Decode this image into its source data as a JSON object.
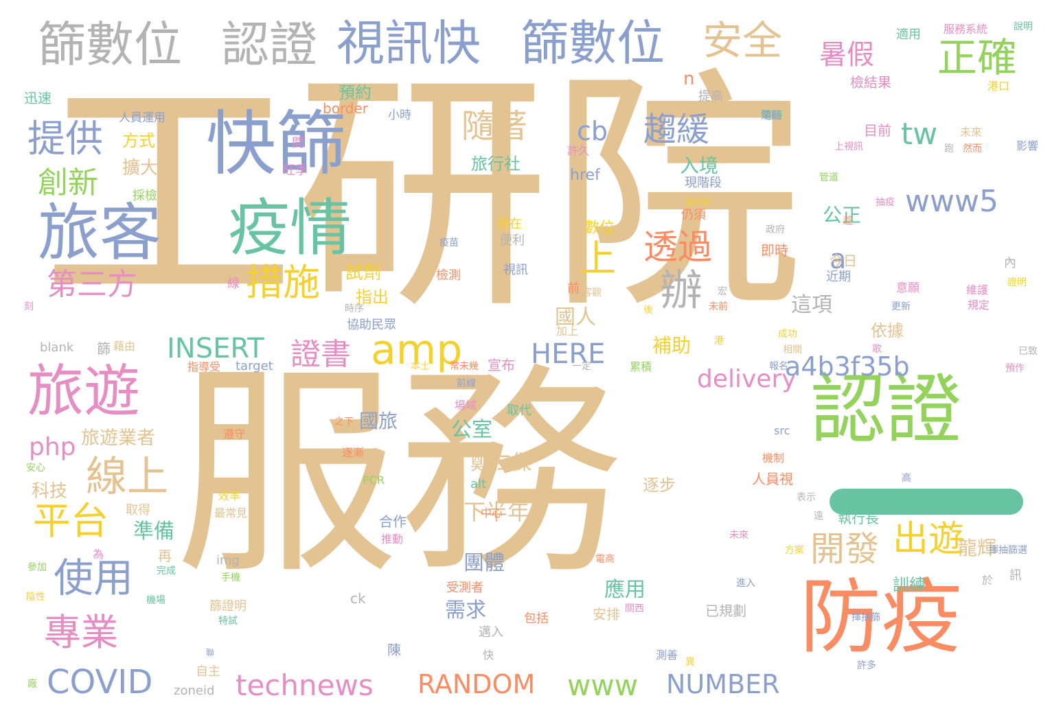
{
  "palette": {
    "tan": "#e3c391",
    "green": "#93d35c",
    "blue": "#8b9fcd",
    "pink": "#e58ec3",
    "orange": "#f98c62",
    "teal": "#67c3a1",
    "gray": "#b3b3b3",
    "yellow": "#f5d12f"
  },
  "words": {
    "w01": "工研院",
    "w02": "服務",
    "w03": "認證",
    "w04": "防疫",
    "w05": "旅遊",
    "w06": "快篩",
    "w07": "旅客",
    "w08": "疫情",
    "w09": "篩數位",
    "w10": "認證",
    "w11": "視訊快",
    "w12": "篩數位",
    "w13": "安全",
    "w14": "正確",
    "w15": "暑假",
    "w16": "提供",
    "w17": "創新",
    "w18": "第三方",
    "w19": "措施",
    "w20": "上",
    "w21": "透過",
    "w22": "趨緩",
    "w23": "隨著",
    "w24": "辦",
    "w25": "amp",
    "w26": "線上",
    "w27": "平台",
    "w28": "使用",
    "w29": "專業",
    "w30": "COVID",
    "w31": "technews",
    "w32": "RANDOM",
    "w33": "www",
    "w34": "NUMBER",
    "w35": "出遊",
    "w36": "開發",
    "w37": "證書",
    "w38": "INSERT",
    "w39": "HERE",
    "w40": "delivery",
    "w41": "a4b3f35b",
    "w42": "www5",
    "w43": "tw",
    "w44": "cb",
    "w45": "a",
    "w46": "php",
    "w47": "旅遊業者",
    "w48": "科技",
    "w49": "準備",
    "w50": "國旅",
    "w51": "公室",
    "w52": "鄭仁傑",
    "w53": "下半年",
    "w54": "團體",
    "w55": "應用",
    "w56": "需求",
    "w57": "補助",
    "w58": "依據",
    "w59": "逐步",
    "w60": "龍輝",
    "w61": "訓練",
    "w62": "這項",
    "w63": "國人",
    "w64": "公正",
    "w65": "入境",
    "w66": "旅行社",
    "w67": "預約",
    "w68": "方式",
    "w69": "擴大",
    "w70": "試劑",
    "w71": "指出",
    "w72": "宣布",
    "w73": "目前",
    "w74": "檢結果",
    "w75": "適用",
    "w76": "服務系統",
    "w77": "說明",
    "w78": "迅速",
    "w79": "人員運用",
    "w80": "border",
    "w81": "小時",
    "w82": "提高",
    "w83": "港口",
    "w84": "未來",
    "w85": "影響",
    "w86": "旺季",
    "w87": "開",
    "w88": "隨時",
    "w89": "許久",
    "w90": "href",
    "w91": "avw",
    "w92": "仍須",
    "w93": "現階段",
    "w94": "數位",
    "w95": "便利",
    "w96": "趕在",
    "w97": "疫苗",
    "w98": "檢測",
    "w99": "視訊",
    "w100": "線",
    "w101": "前",
    "w102": "客觀",
    "w103": "今日",
    "w104": "近期",
    "w105": "意願",
    "w106": "維護",
    "w107": "規定",
    "w108": "證明",
    "w109": "內",
    "w110": "宏",
    "w111": "即時",
    "w112": "政府",
    "w113": "協助民眾",
    "w114": "加上",
    "w115": "時序",
    "w116": "blank",
    "w117": "篩",
    "w118": "藉由",
    "w119": "指導受",
    "w120": "target",
    "w121": "本土",
    "w122": "常未幾",
    "w123": "一定",
    "w124": "累積",
    "w125": "成功",
    "w126": "相關",
    "w127": "已致",
    "w128": "預作",
    "w129": "取代",
    "w130": "場域",
    "w131": "之下",
    "w132": "遵守",
    "w133": "逐漸",
    "w134": "安心",
    "w135": "PCR",
    "w136": "src",
    "w137": "機制",
    "w138": "高",
    "w139": "alt",
    "w140": "人員視",
    "w141": "表示",
    "w142": "執行長",
    "w143": "中心",
    "w144": "取得",
    "w145": "效率",
    "w146": "最常見",
    "w147": "合作",
    "w148": "推動",
    "w149": "再",
    "w150": "為",
    "w151": "完成",
    "w152": "參加",
    "w153": "img",
    "w154": "手機",
    "w155": "篩證明",
    "w156": "特試",
    "w157": "陰性",
    "w158": "機場",
    "w159": "ck",
    "w160": "受測者",
    "w161": "安排",
    "w162": "包括",
    "w163": "關西",
    "w164": "已規劃",
    "w165": "進入",
    "w166": "邁入",
    "w167": "陳",
    "w168": "快",
    "w169": "自主",
    "w170": "測善",
    "w171": "許多",
    "w172": "廠",
    "w173": "zoneid",
    "w174": "訊",
    "w175": "於",
    "w176": "揮抽篩",
    "w177": "揮抽篩選",
    "w178": "方案",
    "w179": "未來",
    "w180": "遠",
    "w181": "刻",
    "w182": "電腦",
    "w183": "上視訊",
    "w184": "管道",
    "w185": "抽疫",
    "w186": "趁",
    "w187": "採檢",
    "w188": "前線",
    "w189": "後",
    "w190": "未前",
    "w191": "更新",
    "w192": "歌",
    "w193": "報名",
    "w194": "電商",
    "w195": "跑",
    "w196": "港",
    "w197": "n",
    "w198": "異",
    "w199": "聯",
    "w200": "然而"
  }
}
